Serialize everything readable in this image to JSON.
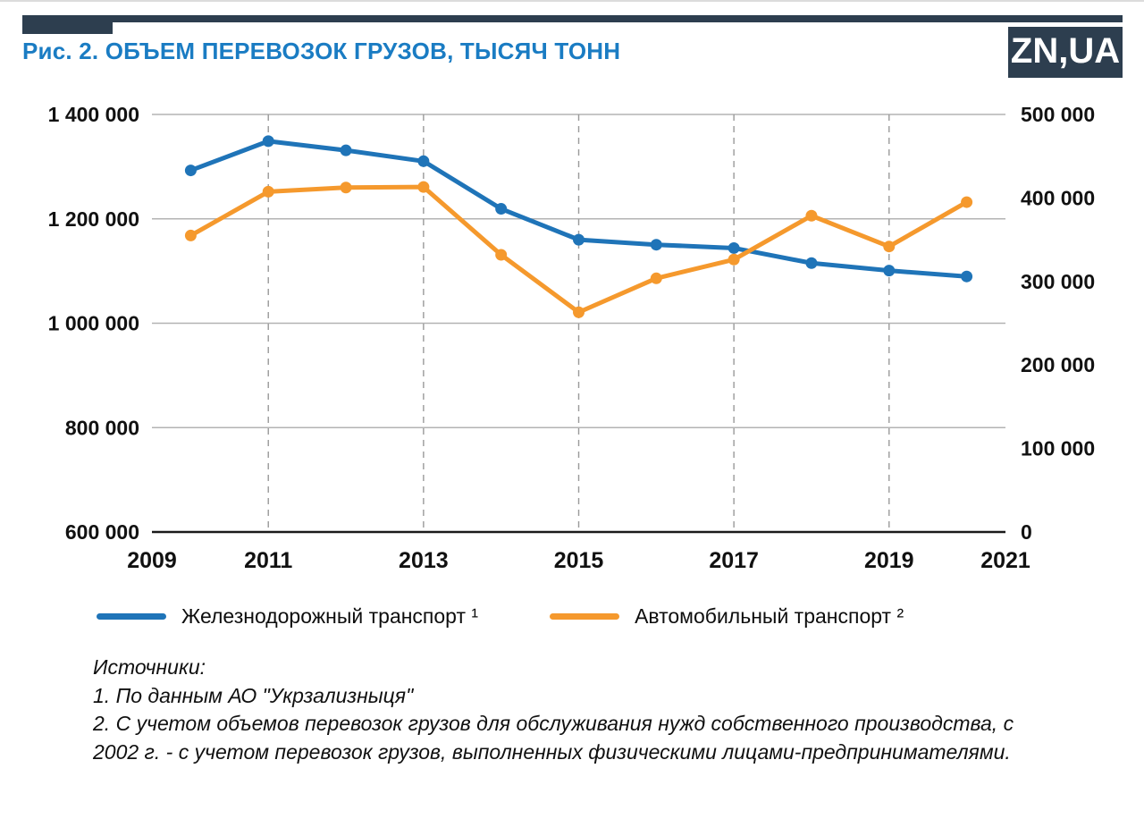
{
  "header": {
    "title": "Рис. 2. ОБЪЕМ ПЕРЕВОЗОК ГРУЗОВ, ТЫСЯЧ ТОНН",
    "logo": "ZN,UA"
  },
  "colors": {
    "title": "#1a7cc3",
    "brand_bar": "#2d3e4f",
    "railway": "#1f74b8",
    "auto": "#f5992d",
    "grid": "#b3b3b3",
    "axis": "#1a1a1a"
  },
  "chart_data": {
    "type": "line",
    "title": "Рис. 2. ОБЪЕМ ПЕРЕВОЗОК ГРУЗОВ, ТЫСЯЧ ТОНН",
    "x": [
      2010,
      2011,
      2012,
      2013,
      2014,
      2015,
      2016,
      2017,
      2018,
      2019,
      2020
    ],
    "x_axis": {
      "range": [
        2009,
        2021
      ],
      "tick_labels": [
        "2009",
        "2011",
        "2013",
        "2015",
        "2017",
        "2019",
        "2021"
      ],
      "gridline_years": [
        2011,
        2013,
        2015,
        2017,
        2019
      ]
    },
    "left_axis": {
      "min": 600000,
      "max": 1400000,
      "step": 200000,
      "labels": [
        "1 400 000",
        "1 200 000",
        "1 000 000",
        "800 000",
        "600 000"
      ]
    },
    "right_axis": {
      "min": 0,
      "max": 500000,
      "step": 100000,
      "labels": [
        "500 000",
        "400 000",
        "300 000",
        "200 000",
        "100 000",
        "0"
      ]
    },
    "series": [
      {
        "name": "Железнодорожный транспорт ¹",
        "axis": "right",
        "color": "#1f74b8",
        "values": [
          433000,
          468000,
          457000,
          444000,
          387000,
          350000,
          344000,
          340000,
          322000,
          313000,
          306000
        ]
      },
      {
        "name": "Автомобильный транспорт ²",
        "axis": "left",
        "color": "#f5992d",
        "values": [
          1168000,
          1252000,
          1260000,
          1261000,
          1131000,
          1021000,
          1086000,
          1122000,
          1206000,
          1147000,
          1232000
        ]
      }
    ],
    "legend_position": "bottom",
    "grid": true
  },
  "sources": {
    "label": "Источники:",
    "items": [
      "1. По данным АО \"Укрзализныця\"",
      "2. С учетом объемов перевозок грузов для обслуживания нужд собственного производства, с 2002 г. - с учетом перевозок грузов, выполненных физическими лицами-предпринимателями."
    ]
  }
}
